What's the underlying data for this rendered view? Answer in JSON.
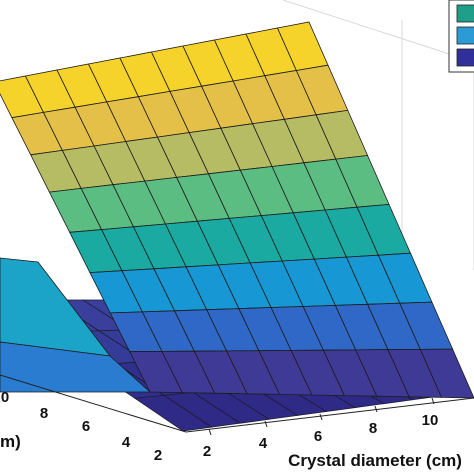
{
  "chart_data": {
    "type": "surface3d",
    "title": "",
    "xlabel": "Crystal diameter (cm)",
    "ylabel_fragment": "m)",
    "zlabel": "",
    "x_ticks": [
      "2",
      "4",
      "6",
      "8",
      "10"
    ],
    "y_ticks": [
      "2",
      "4",
      "6",
      "8",
      "0"
    ],
    "colormap": "parula",
    "colormap_colors": [
      "#3f3a96",
      "#2f68c6",
      "#1797d4",
      "#1aaaa2",
      "#5cbd82",
      "#b5bc64",
      "#e5c049",
      "#f5d32b"
    ],
    "grid": true,
    "series": [
      {
        "role": "upper-surface",
        "x": [
          2,
          3,
          4,
          5,
          6,
          7,
          8,
          9,
          10,
          11,
          12
        ],
        "rows_front_to_back": 8,
        "z_levels": [
          0.06,
          0.17,
          0.29,
          0.42,
          0.55,
          0.68,
          0.8,
          0.91,
          1.0
        ]
      },
      {
        "role": "lower-surface",
        "x": [
          2,
          3,
          4,
          5,
          6,
          7,
          8,
          9,
          10,
          11,
          12
        ],
        "z_levels": [
          0.0,
          0.03,
          0.06,
          0.09,
          0.12
        ]
      }
    ],
    "legend": {
      "position": "top-right",
      "swatch_colors": [
        "#1f9e89",
        "#2c9ad4",
        "#312f9a"
      ],
      "labels": [
        "",
        "",
        ""
      ]
    }
  }
}
